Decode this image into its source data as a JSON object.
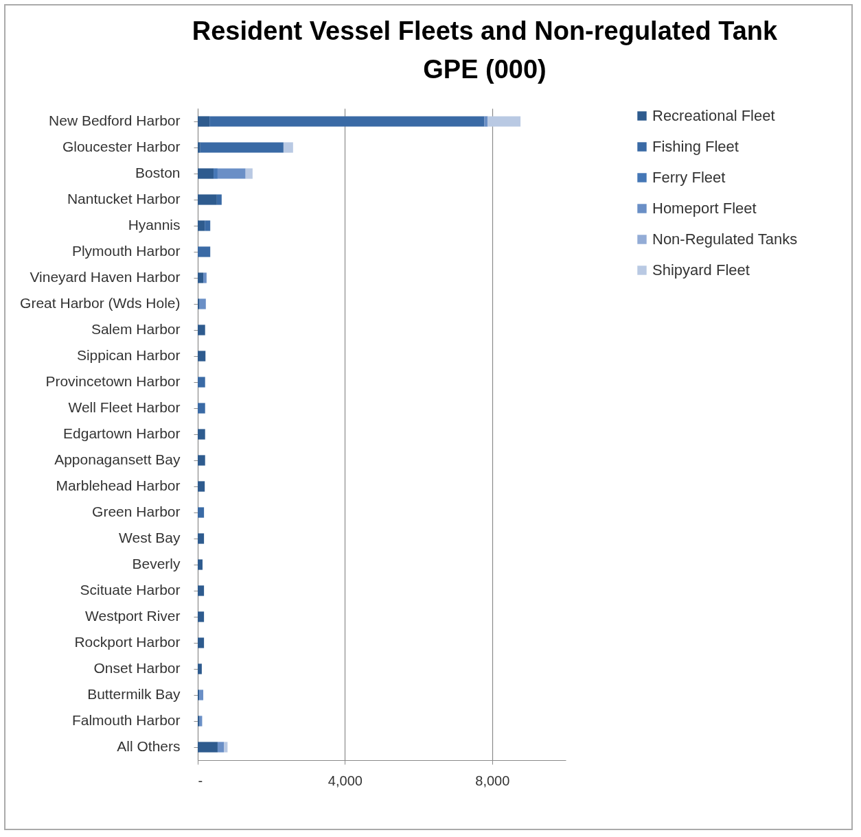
{
  "chart_data": {
    "type": "bar",
    "orientation": "horizontal",
    "stacked": true,
    "title": "Resident Vessel Fleets and Non-regulated Tank GPE (000)",
    "categories": [
      "New Bedford Harbor",
      "Gloucester Harbor",
      "Boston",
      "Nantucket Harbor",
      "Hyannis",
      "Plymouth Harbor",
      "Vineyard Haven Harbor",
      "Great Harbor (Wds Hole)",
      "Salem Harbor",
      "Sippican Harbor",
      "Provincetown Harbor",
      "Well Fleet Harbor",
      "Edgartown Harbor",
      "Apponagansett Bay",
      "Marblehead Harbor",
      "Green Harbor",
      "West Bay",
      "Beverly",
      "Scituate Harbor",
      "Westport River",
      "Rockport Harbor",
      "Onset Harbor",
      "Buttermilk Bay",
      "Falmouth Harbor",
      "All Others"
    ],
    "series": [
      {
        "name": "Recreational Fleet",
        "color": "#2e5b8e",
        "values": [
          320,
          70,
          430,
          520,
          190,
          0,
          150,
          50,
          200,
          210,
          0,
          0,
          200,
          200,
          190,
          0,
          170,
          130,
          170,
          170,
          170,
          110,
          40,
          50,
          540
        ]
      },
      {
        "name": "Fishing Fleet",
        "color": "#3a6aa5",
        "values": [
          7470,
          2260,
          0,
          130,
          150,
          340,
          0,
          0,
          0,
          0,
          200,
          200,
          0,
          0,
          0,
          170,
          0,
          0,
          0,
          0,
          0,
          0,
          0,
          0,
          0
        ]
      },
      {
        "name": "Ferry Fleet",
        "color": "#4577b6",
        "values": [
          0,
          0,
          110,
          0,
          0,
          0,
          0,
          0,
          0,
          0,
          0,
          0,
          0,
          0,
          0,
          0,
          0,
          0,
          0,
          0,
          0,
          0,
          0,
          0,
          0
        ]
      },
      {
        "name": "Homeport Fleet",
        "color": "#6a8fc6",
        "values": [
          90,
          0,
          760,
          0,
          0,
          0,
          90,
          170,
          0,
          0,
          0,
          0,
          0,
          0,
          0,
          0,
          0,
          0,
          0,
          0,
          0,
          0,
          110,
          70,
          170
        ]
      },
      {
        "name": "Non-Regulated Tanks",
        "color": "#93acd6",
        "values": [
          0,
          0,
          0,
          0,
          0,
          0,
          0,
          0,
          0,
          0,
          0,
          0,
          0,
          0,
          0,
          0,
          0,
          0,
          0,
          0,
          0,
          0,
          0,
          0,
          0
        ]
      },
      {
        "name": "Shipyard Fleet",
        "color": "#b9c9e3",
        "values": [
          890,
          260,
          190,
          0,
          0,
          0,
          0,
          0,
          0,
          0,
          0,
          0,
          0,
          0,
          0,
          0,
          0,
          0,
          0,
          0,
          0,
          0,
          0,
          0,
          100
        ]
      }
    ],
    "xlim": [
      0,
      10000
    ],
    "xticks": [
      {
        "value": 0,
        "label": "-"
      },
      {
        "value": 4000,
        "label": "4,000"
      },
      {
        "value": 8000,
        "label": "8,000"
      }
    ],
    "grid": "x",
    "legend": "right"
  }
}
